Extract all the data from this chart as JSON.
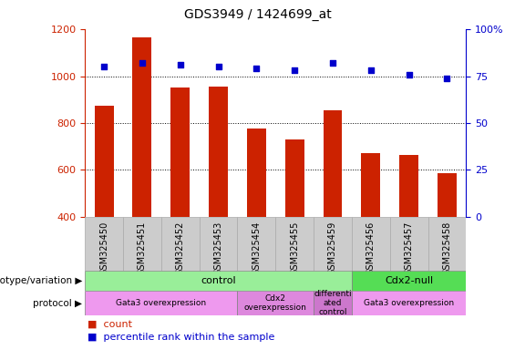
{
  "title": "GDS3949 / 1424699_at",
  "samples": [
    "GSM325450",
    "GSM325451",
    "GSM325452",
    "GSM325453",
    "GSM325454",
    "GSM325455",
    "GSM325459",
    "GSM325456",
    "GSM325457",
    "GSM325458"
  ],
  "counts": [
    875,
    1165,
    950,
    955,
    775,
    730,
    855,
    670,
    665,
    585
  ],
  "percentile_ranks": [
    80,
    82,
    81,
    80,
    79,
    78,
    82,
    78,
    76,
    74
  ],
  "bar_color": "#cc2200",
  "dot_color": "#0000cc",
  "ylim_left": [
    400,
    1200
  ],
  "ylim_right": [
    0,
    100
  ],
  "yticks_left": [
    400,
    600,
    800,
    1000,
    1200
  ],
  "yticks_right": [
    0,
    25,
    50,
    75,
    100
  ],
  "grid_values": [
    600,
    800,
    1000
  ],
  "genotype_groups": [
    {
      "label": "control",
      "start": 0,
      "end": 7,
      "color": "#99ee99"
    },
    {
      "label": "Cdx2-null",
      "start": 7,
      "end": 10,
      "color": "#55dd55"
    }
  ],
  "protocol_groups": [
    {
      "label": "Gata3 overexpression",
      "start": 0,
      "end": 4,
      "color": "#ee99ee"
    },
    {
      "label": "Cdx2\noverexpression",
      "start": 4,
      "end": 6,
      "color": "#dd88dd"
    },
    {
      "label": "differenti\nated\ncontrol",
      "start": 6,
      "end": 7,
      "color": "#cc77cc"
    },
    {
      "label": "Gata3 overexpression",
      "start": 7,
      "end": 10,
      "color": "#ee99ee"
    }
  ],
  "tick_area_color": "#cccccc",
  "bar_width": 0.5,
  "legend_count_color": "#cc2200",
  "legend_pct_color": "#0000cc"
}
